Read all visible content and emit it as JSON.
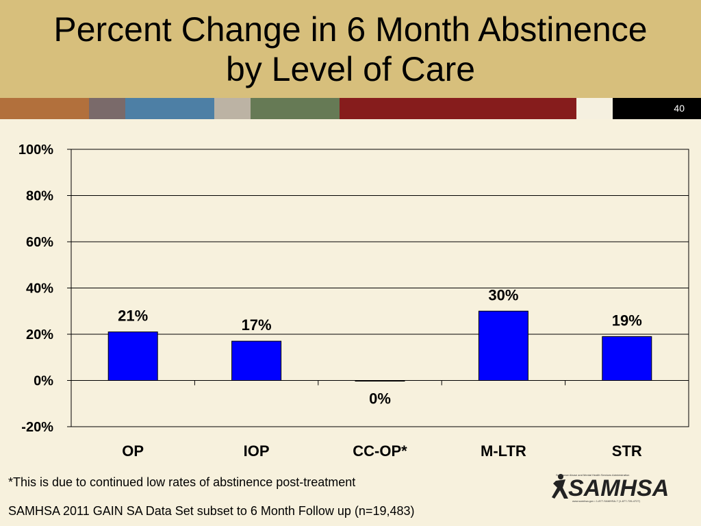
{
  "slide": {
    "title_line1": "Percent Change in 6 Month Abstinence",
    "title_line2": "by Level of Care",
    "slide_number": "40",
    "footnote": "*This is due to continued low rates of abstinence post-treatment",
    "source": "SAMHSA 2011 GAIN SA Data Set subset to 6 Month Follow up (n=19,483)",
    "logo_text": "SAMHSA",
    "logo_tagline": "Substance Abuse and Mental Health Services Administration",
    "logo_contact": "www.samhsa.gov • 1-877-SAMHSA-7 (1-877-726-4727)"
  },
  "colors": {
    "title_band": "#d7bf7c",
    "background": "#f7f1dd",
    "bar": "#0000ff",
    "stripe": [
      "#b2703c",
      "#7a6a6a",
      "#4d7fa5",
      "#bcb3a4",
      "#667a55",
      "#861c1c",
      "#f5f0e0",
      "#000000"
    ]
  },
  "chart_data": {
    "type": "bar",
    "categories": [
      "OP",
      "IOP",
      "CC-OP*",
      "M-LTR",
      "STR"
    ],
    "values": [
      21,
      17,
      0,
      30,
      19
    ],
    "data_labels": [
      "21%",
      "17%",
      "0%",
      "30%",
      "19%"
    ],
    "y_ticks": [
      "100%",
      "80%",
      "60%",
      "40%",
      "20%",
      "0%",
      "-20%"
    ],
    "ylim": [
      -20,
      100
    ],
    "grid": true,
    "legend": "none",
    "title": "",
    "xlabel": "",
    "ylabel": ""
  }
}
